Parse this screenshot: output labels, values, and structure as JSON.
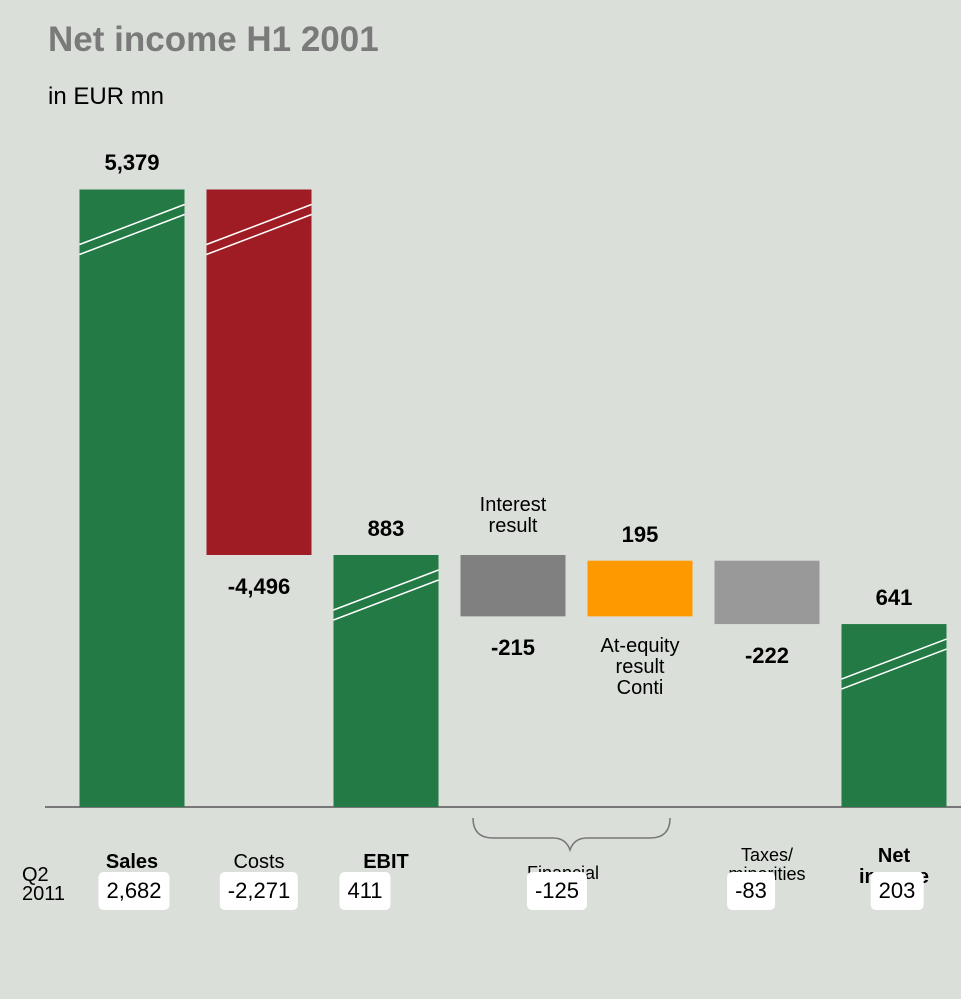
{
  "chart_data": {
    "type": "waterfall",
    "title": "Net income H1 2001",
    "subtitle": "in EUR mn",
    "categories": [
      "Sales",
      "Costs",
      "EBIT",
      "Interest\nresult",
      "At-equity\nresult\nConti",
      "Taxes/\nminorities",
      "Net\nincome"
    ],
    "bold_categories": [
      true,
      false,
      true,
      false,
      false,
      false,
      true
    ],
    "values": [
      5379,
      -4496,
      883,
      -215,
      195,
      -222,
      641
    ],
    "value_labels": [
      "5,379",
      "-4,496",
      "883",
      "-215",
      "195",
      "-222",
      "641"
    ],
    "colors": [
      "#237a45",
      "#a01c24",
      "#237a45",
      "#808080",
      "#ff9900",
      "#999999",
      "#237a45"
    ],
    "group_label": "Financial\nresult",
    "q2": {
      "label": "Q2\n2011",
      "values": [
        2682,
        -2271,
        411,
        -125,
        -83,
        203
      ],
      "value_labels": [
        "2,682",
        "-2,271",
        "411",
        "-125",
        "-83",
        "203"
      ]
    }
  }
}
